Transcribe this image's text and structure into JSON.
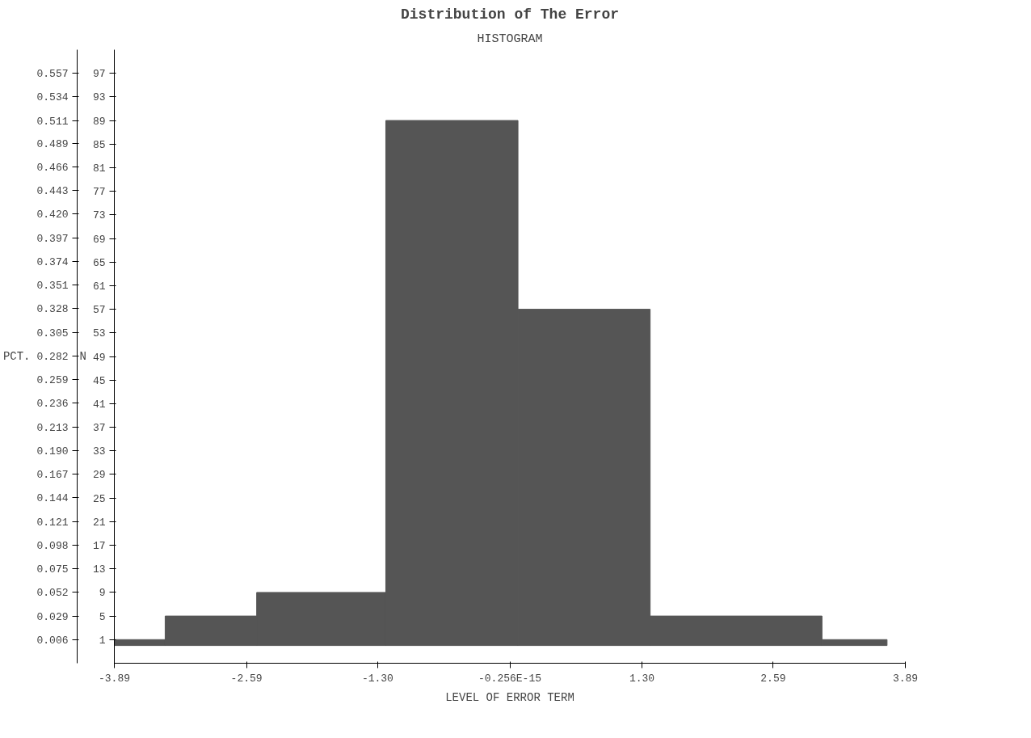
{
  "chart_data": {
    "type": "histogram",
    "title": "Distribution of The Error",
    "subtitle": "HISTOGRAM",
    "xlabel": "LEVEL OF ERROR TERM",
    "ylabel": "N",
    "y2label": "PCT.",
    "bins": [
      -3.89,
      -3.39,
      -2.49,
      -1.22,
      0.08,
      1.38,
      3.07,
      3.71
    ],
    "values": [
      1,
      5,
      9,
      89,
      57,
      5,
      1
    ],
    "color": "#555555",
    "xlim": [
      -3.89,
      3.89
    ],
    "xticks": [
      -3.89,
      -2.59,
      {
        "value": -1.3,
        "label": "-1.30"
      },
      {
        "value": 0,
        "label": "-0.256E-15"
      },
      {
        "value": 1.3,
        "label": "1.30"
      },
      2.59,
      3.89
    ],
    "ylim": [
      -3,
      101
    ],
    "yticks": [
      1,
      5,
      9,
      13,
      17,
      21,
      25,
      29,
      33,
      37,
      41,
      45,
      49,
      53,
      57,
      61,
      65,
      69,
      73,
      77,
      81,
      85,
      89,
      93,
      97
    ],
    "y2lim": [
      -0.017,
      0.58
    ],
    "y2ticks": [
      0.006,
      0.029,
      0.052,
      0.075,
      0.098,
      0.121,
      0.144,
      0.167,
      {
        "value": 0.19,
        "label": "0.190"
      },
      0.213,
      0.236,
      0.259,
      0.282,
      0.305,
      0.328,
      0.351,
      0.374,
      0.397,
      {
        "value": 0.42,
        "label": "0.420"
      },
      0.443,
      0.466,
      0.489,
      0.511,
      0.534,
      0.557
    ],
    "grid": false
  }
}
